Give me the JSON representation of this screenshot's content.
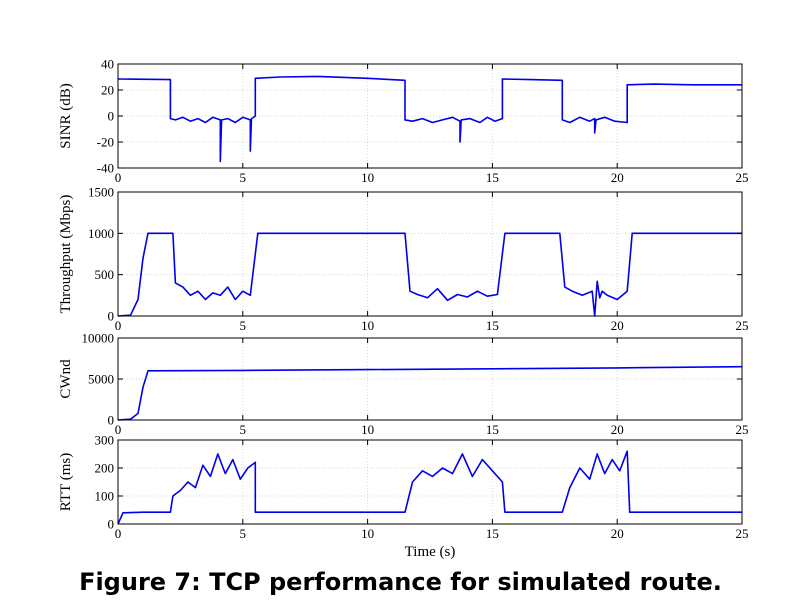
{
  "caption": "Figure 7: TCP performance for simulated route.",
  "series_color": "#0000ee",
  "chart_data": [
    {
      "type": "line",
      "ylabel": "SINR (dB)",
      "xlim": [
        0,
        25
      ],
      "ylim": [
        -40,
        40
      ],
      "xticks": [
        0,
        5,
        10,
        15,
        20,
        25
      ],
      "yticks": [
        -40,
        -20,
        0,
        20,
        40
      ],
      "grid": true,
      "series": [
        {
          "x": [
            0,
            2.1,
            2.1,
            2.3,
            2.6,
            2.9,
            3.2,
            3.5,
            3.8,
            4.1,
            4.1,
            4.15,
            4.4,
            4.7,
            5.0,
            5.3,
            5.3,
            5.35,
            5.5,
            5.5,
            6.5,
            8.0,
            10.0,
            11.5,
            11.5,
            11.8,
            12.2,
            12.6,
            13.0,
            13.4,
            13.7,
            13.7,
            13.75,
            14.1,
            14.5,
            14.8,
            15.1,
            15.4,
            15.4,
            16.5,
            17.8,
            17.8,
            18.1,
            18.5,
            18.9,
            19.1,
            19.1,
            19.15,
            19.5,
            19.9,
            20.4,
            20.4,
            21.5,
            23.0,
            25.0
          ],
          "y": [
            28.5,
            28,
            -2,
            -3,
            -1,
            -4,
            -2,
            -5,
            -1,
            -3,
            -35,
            -3,
            -2,
            -5,
            -1,
            -3,
            -27,
            -2,
            0,
            29,
            30,
            30.5,
            29,
            27.5,
            -3,
            -4,
            -2,
            -5,
            -3,
            -1,
            -4,
            -20,
            -3,
            -2,
            -5,
            -1,
            -4,
            -2,
            28.5,
            28,
            27.5,
            -3,
            -5,
            -1,
            -4,
            -2,
            -13,
            -3,
            -1,
            -4,
            -5,
            24,
            24.5,
            24,
            24
          ]
        }
      ]
    },
    {
      "type": "line",
      "ylabel": "Throughput (Mbps)",
      "xlim": [
        0,
        25
      ],
      "ylim": [
        0,
        1500
      ],
      "xticks": [
        0,
        5,
        10,
        15,
        20,
        25
      ],
      "yticks": [
        0,
        500,
        1000,
        1500
      ],
      "grid": true,
      "series": [
        {
          "x": [
            0,
            0.5,
            0.8,
            1.0,
            1.2,
            1.4,
            2.2,
            2.3,
            2.6,
            2.9,
            3.2,
            3.5,
            3.8,
            4.1,
            4.4,
            4.7,
            5.0,
            5.3,
            5.6,
            5.9,
            11.5,
            11.7,
            12.0,
            12.4,
            12.8,
            13.2,
            13.6,
            14.0,
            14.4,
            14.8,
            15.2,
            15.5,
            15.8,
            17.7,
            17.9,
            18.2,
            18.6,
            19.0,
            19.1,
            19.2,
            19.3,
            19.4,
            19.6,
            20.0,
            20.4,
            20.6,
            20.9,
            21.5,
            25.0
          ],
          "y": [
            0,
            10,
            200,
            700,
            1000,
            1000,
            1000,
            400,
            350,
            250,
            300,
            200,
            280,
            250,
            350,
            200,
            300,
            250,
            1000,
            1000,
            1000,
            300,
            260,
            220,
            330,
            190,
            260,
            230,
            300,
            240,
            260,
            1000,
            1000,
            1000,
            350,
            300,
            250,
            300,
            0,
            420,
            220,
            300,
            250,
            200,
            300,
            1000,
            1000,
            1000,
            1000
          ]
        }
      ]
    },
    {
      "type": "line",
      "ylabel": "CWnd",
      "xlim": [
        0,
        25
      ],
      "ylim": [
        0,
        10000
      ],
      "xticks": [
        0,
        5,
        10,
        15,
        20,
        25
      ],
      "yticks": [
        0,
        5000,
        10000
      ],
      "grid": true,
      "series": [
        {
          "x": [
            0,
            0.5,
            0.8,
            1.0,
            1.2,
            5.0,
            10.0,
            15.0,
            20.0,
            25.0
          ],
          "y": [
            0,
            100,
            800,
            4000,
            6000,
            6050,
            6150,
            6250,
            6350,
            6500
          ]
        }
      ]
    },
    {
      "type": "line",
      "ylabel": "RTT (ms)",
      "xlabel": "Time (s)",
      "xlim": [
        0,
        25
      ],
      "ylim": [
        0,
        300
      ],
      "xticks": [
        0,
        5,
        10,
        15,
        20,
        25
      ],
      "yticks": [
        0,
        100,
        200,
        300
      ],
      "grid": true,
      "series": [
        {
          "x": [
            0,
            0.2,
            1.0,
            2.1,
            2.2,
            2.5,
            2.8,
            3.1,
            3.4,
            3.7,
            4.0,
            4.3,
            4.6,
            4.9,
            5.2,
            5.5,
            5.5,
            11.5,
            11.8,
            12.2,
            12.6,
            13.0,
            13.4,
            13.8,
            14.2,
            14.6,
            15.0,
            15.4,
            15.5,
            17.8,
            18.1,
            18.5,
            18.9,
            19.2,
            19.5,
            19.8,
            20.1,
            20.4,
            20.5,
            25.0
          ],
          "y": [
            0,
            40,
            42,
            42,
            100,
            120,
            150,
            130,
            210,
            170,
            250,
            180,
            230,
            160,
            200,
            220,
            42,
            42,
            150,
            190,
            170,
            200,
            180,
            250,
            170,
            230,
            190,
            150,
            42,
            42,
            130,
            200,
            160,
            250,
            180,
            230,
            190,
            260,
            42,
            42
          ]
        }
      ]
    }
  ]
}
